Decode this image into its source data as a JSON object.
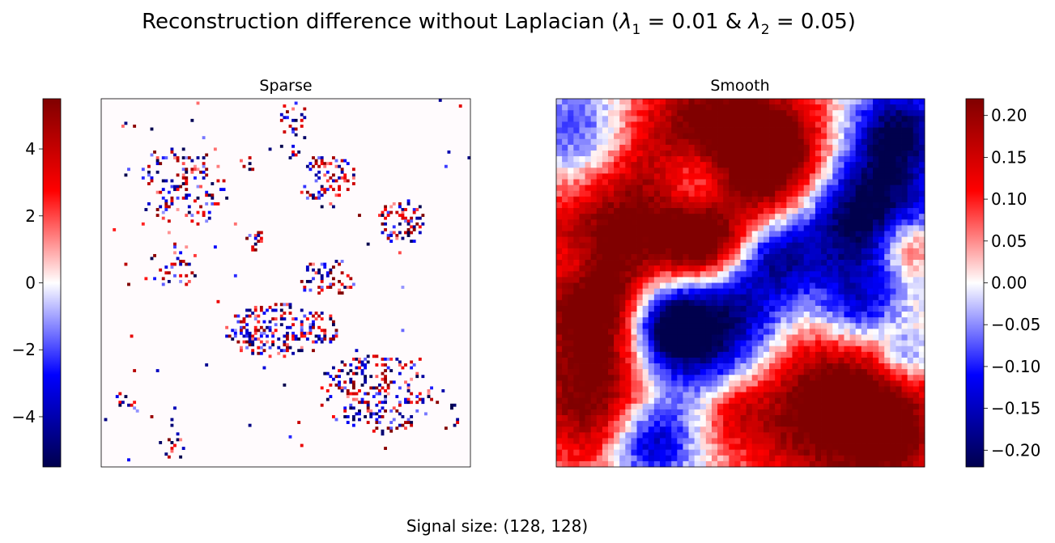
{
  "figure": {
    "title_main": "Reconstruction difference without Laplacian (",
    "title_lambda1": "λ",
    "title_lambda1_sub": "1",
    "title_eq1": " = 0.01 & ",
    "title_lambda2": "λ",
    "title_lambda2_sub": "2",
    "title_eq2": " = 0.05)",
    "footer": "Signal size: (128, 128)"
  },
  "colormap": {
    "name": "seismic",
    "stops": [
      "#00004d",
      "#0000ff",
      "#ffffff",
      "#ff0000",
      "#800000"
    ]
  },
  "chart_data": [
    {
      "type": "heatmap",
      "title": "Sparse",
      "grid_size": [
        128,
        128
      ],
      "colorbar_position": "left",
      "vmin": -5.5,
      "vmax": 5.5,
      "colorbar_ticks": [
        -4,
        -2,
        0,
        2,
        4
      ],
      "colorbar_tick_labels": [
        "−4",
        "−2",
        "0",
        "2",
        "4"
      ],
      "axis_ticks": "hidden",
      "description_of_values": "mostly zero background with scattered sparse positive and negative spikes clustered in blob regions"
    },
    {
      "type": "heatmap",
      "title": "Smooth",
      "grid_size": [
        128,
        128
      ],
      "colorbar_position": "right",
      "vmin": -0.22,
      "vmax": 0.22,
      "colorbar_ticks": [
        -0.2,
        -0.15,
        -0.1,
        -0.05,
        0.0,
        0.05,
        0.1,
        0.15,
        0.2
      ],
      "colorbar_tick_labels": [
        "−0.20",
        "−0.15",
        "−0.10",
        "−0.05",
        "0.00",
        "0.05",
        "0.10",
        "0.15",
        "0.20"
      ],
      "axis_ticks": "hidden",
      "description_of_values": "smooth spatially correlated field with large saturated positive (dark red) and negative (dark blue) regions"
    }
  ]
}
